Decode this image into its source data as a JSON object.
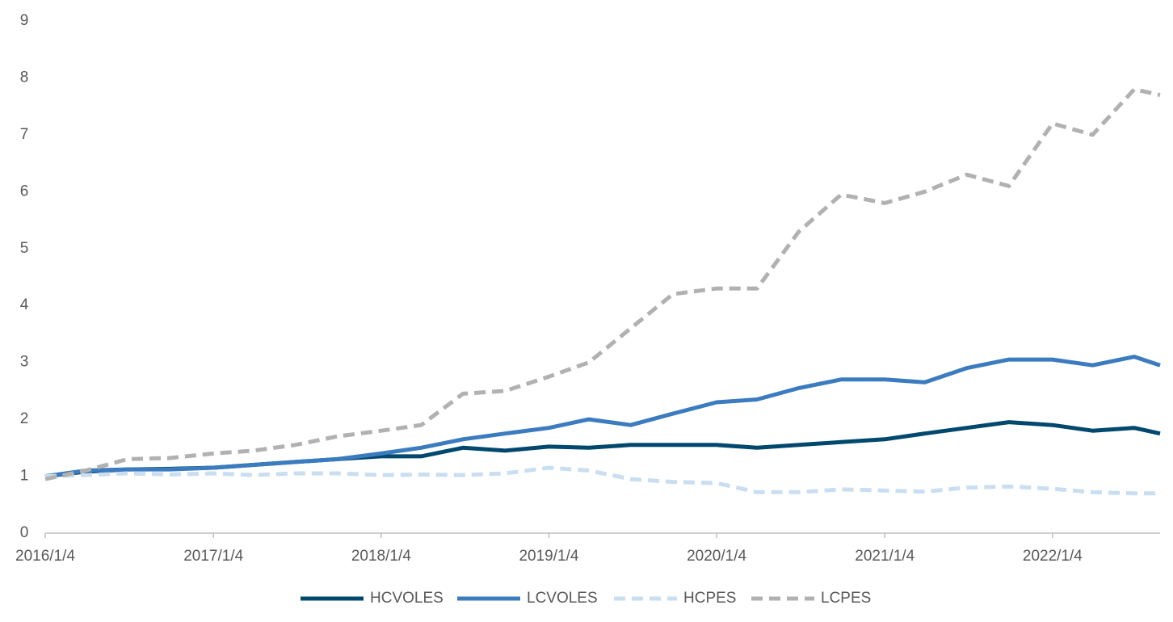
{
  "chart_data": {
    "type": "line",
    "x": [
      "2016/1/4",
      "2016/4/1",
      "2016/7/1",
      "2016/10/1",
      "2017/1/4",
      "2017/4/1",
      "2017/7/1",
      "2017/10/1",
      "2018/1/4",
      "2018/4/1",
      "2018/7/1",
      "2018/10/1",
      "2019/1/4",
      "2019/4/1",
      "2019/7/1",
      "2019/10/1",
      "2020/1/4",
      "2020/4/1",
      "2020/7/1",
      "2020/10/1",
      "2021/1/4",
      "2021/4/1",
      "2021/7/1",
      "2021/10/1",
      "2022/1/4",
      "2022/4/1",
      "2022/7/1",
      "2022/8/26"
    ],
    "series": [
      {
        "name": "HCVOLES",
        "color": "#00486e",
        "dashed": false,
        "values": [
          1.0,
          1.08,
          1.12,
          1.13,
          1.15,
          1.2,
          1.25,
          1.3,
          1.35,
          1.35,
          1.5,
          1.45,
          1.52,
          1.5,
          1.55,
          1.55,
          1.55,
          1.5,
          1.55,
          1.6,
          1.65,
          1.75,
          1.85,
          1.95,
          1.9,
          1.8,
          1.85,
          1.75
        ]
      },
      {
        "name": "LCVOLES",
        "color": "#3b7bc0",
        "dashed": false,
        "values": [
          1.0,
          1.1,
          1.12,
          1.12,
          1.15,
          1.2,
          1.25,
          1.3,
          1.4,
          1.5,
          1.65,
          1.75,
          1.85,
          2.0,
          1.9,
          2.1,
          2.3,
          2.35,
          2.55,
          2.7,
          2.7,
          2.65,
          2.9,
          3.05,
          3.05,
          2.95,
          3.1,
          2.95
        ]
      },
      {
        "name": "HCPES",
        "color": "#cadef1",
        "dashed": true,
        "values": [
          1.0,
          1.02,
          1.05,
          1.03,
          1.05,
          1.02,
          1.05,
          1.05,
          1.02,
          1.03,
          1.02,
          1.05,
          1.15,
          1.1,
          0.95,
          0.9,
          0.88,
          0.72,
          0.72,
          0.77,
          0.75,
          0.73,
          0.8,
          0.82,
          0.78,
          0.72,
          0.7,
          0.7
        ]
      },
      {
        "name": "LCPES",
        "color": "#b1b1b1",
        "dashed": true,
        "values": [
          0.95,
          1.1,
          1.3,
          1.32,
          1.4,
          1.45,
          1.55,
          1.7,
          1.8,
          1.9,
          2.45,
          2.5,
          2.75,
          3.0,
          3.6,
          4.2,
          4.3,
          4.3,
          5.3,
          5.95,
          5.8,
          6.0,
          6.3,
          6.1,
          7.2,
          7.0,
          7.8,
          7.7
        ]
      }
    ],
    "xlim": [
      "2016/1/4",
      "2022/8/26"
    ],
    "xticks": [
      "2016/1/4",
      "2017/1/4",
      "2018/1/4",
      "2019/1/4",
      "2020/1/4",
      "2021/1/4",
      "2022/1/4"
    ],
    "ylim": [
      0,
      9
    ],
    "yticks": [
      0,
      1,
      2,
      3,
      4,
      5,
      6,
      7,
      8,
      9
    ],
    "grid": false,
    "legend": "bottom"
  }
}
